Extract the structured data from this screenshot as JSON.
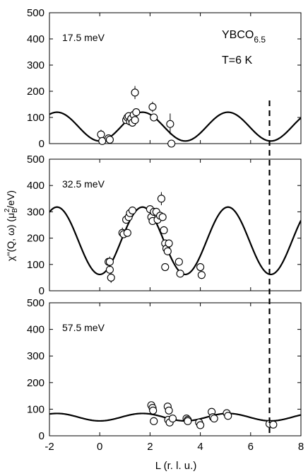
{
  "chart_data": {
    "type": "scatter",
    "xlabel": "L (r. l. u.)",
    "ylabel_parts": [
      "χ''(Q, ω) (μ",
      "B",
      "2",
      "/eV)"
    ],
    "xlim": [
      -2,
      8
    ],
    "ylim": [
      0,
      500
    ],
    "x_ticks": [
      -2,
      0,
      2,
      4,
      6,
      8
    ],
    "y_ticks": [
      0,
      100,
      200,
      300,
      400,
      500
    ],
    "dashed_line_x": 6.75,
    "sample_label": {
      "base": "YBCO",
      "sub": "6.5"
    },
    "temperature_label": "T=6 K",
    "panels": [
      {
        "energy": "17.5 meV",
        "curve": {
          "offset": 65,
          "amplitude": 55,
          "period": 3.4,
          "peak_x": 1.7
        },
        "points": [
          {
            "x": 0.05,
            "y": 35,
            "err": 18
          },
          {
            "x": 0.1,
            "y": 10,
            "err": 8
          },
          {
            "x": 0.35,
            "y": 20,
            "err": 10
          },
          {
            "x": 0.4,
            "y": 15,
            "err": 8
          },
          {
            "x": 1.05,
            "y": 90,
            "err": 15
          },
          {
            "x": 1.1,
            "y": 100,
            "err": 15
          },
          {
            "x": 1.15,
            "y": 105,
            "err": 12
          },
          {
            "x": 1.2,
            "y": 85,
            "err": 12
          },
          {
            "x": 1.25,
            "y": 95,
            "err": 12
          },
          {
            "x": 1.3,
            "y": 80,
            "err": 12
          },
          {
            "x": 1.35,
            "y": 110,
            "err": 15
          },
          {
            "x": 1.4,
            "y": 90,
            "err": 12
          },
          {
            "x": 1.45,
            "y": 120,
            "err": 15
          },
          {
            "x": 1.4,
            "y": 195,
            "err": 25
          },
          {
            "x": 2.1,
            "y": 140,
            "err": 20
          },
          {
            "x": 2.15,
            "y": 100,
            "err": 15
          },
          {
            "x": 2.8,
            "y": 75,
            "err": 40
          },
          {
            "x": 2.85,
            "y": 0,
            "err": 0
          }
        ]
      },
      {
        "energy": "32.5 meV",
        "curve": {
          "offset": 190,
          "amplitude": 128,
          "period": 3.4,
          "peak_x": 1.7
        },
        "points": [
          {
            "x": 0.35,
            "y": 110,
            "err": 15
          },
          {
            "x": 0.4,
            "y": 80,
            "err": 15
          },
          {
            "x": 0.45,
            "y": 50,
            "err": 20
          },
          {
            "x": 0.4,
            "y": 110,
            "err": 20
          },
          {
            "x": 0.9,
            "y": 220,
            "err": 20
          },
          {
            "x": 0.95,
            "y": 215,
            "err": 15
          },
          {
            "x": 1.05,
            "y": 270,
            "err": 15
          },
          {
            "x": 1.1,
            "y": 220,
            "err": 15
          },
          {
            "x": 1.15,
            "y": 280,
            "err": 15
          },
          {
            "x": 1.2,
            "y": 295,
            "err": 15
          },
          {
            "x": 1.3,
            "y": 305,
            "err": 15
          },
          {
            "x": 2.0,
            "y": 310,
            "err": 15
          },
          {
            "x": 2.05,
            "y": 280,
            "err": 15
          },
          {
            "x": 2.1,
            "y": 265,
            "err": 15
          },
          {
            "x": 2.15,
            "y": 300,
            "err": 15
          },
          {
            "x": 2.25,
            "y": 300,
            "err": 15
          },
          {
            "x": 2.3,
            "y": 270,
            "err": 15
          },
          {
            "x": 2.4,
            "y": 285,
            "err": 15
          },
          {
            "x": 2.45,
            "y": 350,
            "err": 25
          },
          {
            "x": 2.5,
            "y": 280,
            "err": 15
          },
          {
            "x": 2.55,
            "y": 230,
            "err": 15
          },
          {
            "x": 2.6,
            "y": 180,
            "err": 15
          },
          {
            "x": 2.65,
            "y": 160,
            "err": 15
          },
          {
            "x": 2.7,
            "y": 150,
            "err": 15
          },
          {
            "x": 2.6,
            "y": 90,
            "err": 15
          },
          {
            "x": 2.75,
            "y": 180,
            "err": 15
          },
          {
            "x": 3.15,
            "y": 110,
            "err": 12
          },
          {
            "x": 3.2,
            "y": 65,
            "err": 10
          },
          {
            "x": 4.0,
            "y": 90,
            "err": 15
          },
          {
            "x": 4.05,
            "y": 60,
            "err": 15
          }
        ]
      },
      {
        "energy": "57.5 meV",
        "curve": {
          "offset": 70,
          "amplitude": 14,
          "period": 3.4,
          "peak_x": 1.7
        },
        "points": [
          {
            "x": 2.05,
            "y": 115,
            "err": 8
          },
          {
            "x": 2.1,
            "y": 105,
            "err": 8
          },
          {
            "x": 2.12,
            "y": 95,
            "err": 8
          },
          {
            "x": 2.15,
            "y": 55,
            "err": 8
          },
          {
            "x": 2.7,
            "y": 110,
            "err": 8
          },
          {
            "x": 2.75,
            "y": 95,
            "err": 8
          },
          {
            "x": 2.72,
            "y": 60,
            "err": 8
          },
          {
            "x": 2.78,
            "y": 50,
            "err": 8
          },
          {
            "x": 2.9,
            "y": 65,
            "err": 8
          },
          {
            "x": 3.45,
            "y": 65,
            "err": 8
          },
          {
            "x": 3.5,
            "y": 60,
            "err": 8
          },
          {
            "x": 3.5,
            "y": 55,
            "err": 8
          },
          {
            "x": 3.95,
            "y": 50,
            "err": 8
          },
          {
            "x": 4.0,
            "y": 40,
            "err": 8
          },
          {
            "x": 4.45,
            "y": 90,
            "err": 8
          },
          {
            "x": 4.5,
            "y": 70,
            "err": 8
          },
          {
            "x": 4.55,
            "y": 65,
            "err": 8
          },
          {
            "x": 5.05,
            "y": 85,
            "err": 8
          },
          {
            "x": 5.1,
            "y": 75,
            "err": 8
          },
          {
            "x": 6.75,
            "y": 45,
            "err": 0
          },
          {
            "x": 6.9,
            "y": 42,
            "err": 0
          }
        ]
      }
    ]
  }
}
